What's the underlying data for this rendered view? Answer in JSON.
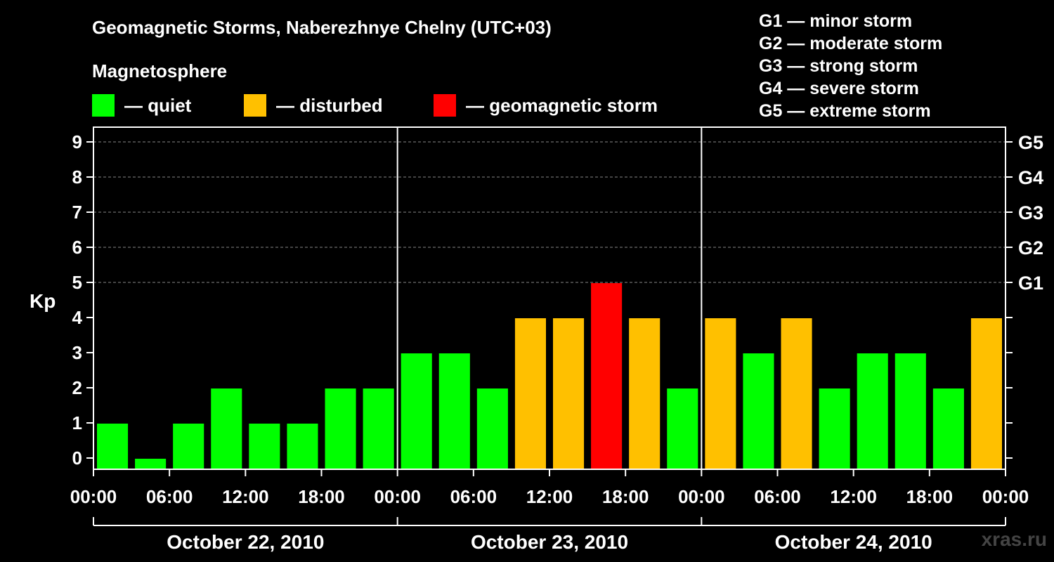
{
  "title": "Geomagnetic Storms, Naberezhnye Chelny (UTC+03)",
  "subtitle": "Magnetosphere",
  "legend": [
    {
      "label": "— quiet",
      "color": "#00ff00"
    },
    {
      "label": "— disturbed",
      "color": "#ffc000"
    },
    {
      "label": "— geomagnetic storm",
      "color": "#ff0000"
    }
  ],
  "g_legend": [
    "G1 — minor storm",
    "G2 — moderate storm",
    "G3 — strong storm",
    "G4 — severe storm",
    "G5 — extreme storm"
  ],
  "watermark": "xras.ru",
  "chart_data": {
    "type": "bar",
    "ylabel": "Kp",
    "ylim": [
      0,
      9
    ],
    "yticks": [
      0,
      1,
      2,
      3,
      4,
      5,
      6,
      7,
      8,
      9
    ],
    "right_ticks": [
      {
        "kp": 5,
        "label": "G1"
      },
      {
        "kp": 6,
        "label": "G2"
      },
      {
        "kp": 7,
        "label": "G3"
      },
      {
        "kp": 8,
        "label": "G4"
      },
      {
        "kp": 9,
        "label": "G5"
      }
    ],
    "x_tick_labels": [
      "00:00",
      "06:00",
      "12:00",
      "18:00",
      "00:00",
      "06:00",
      "12:00",
      "18:00",
      "00:00",
      "06:00",
      "12:00",
      "18:00",
      "00:00"
    ],
    "days": [
      "October 22, 2010",
      "October 23, 2010",
      "October 24, 2010"
    ],
    "values": [
      1,
      0,
      1,
      2,
      1,
      1,
      2,
      2,
      3,
      3,
      2,
      4,
      4,
      5,
      4,
      2,
      4,
      3,
      4,
      2,
      3,
      3,
      2,
      4
    ],
    "colors": {
      "quiet": "#00ff00",
      "disturbed": "#ffc000",
      "storm": "#ff0000"
    }
  }
}
